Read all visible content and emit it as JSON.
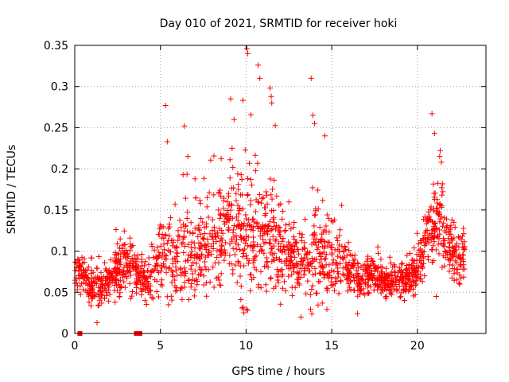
{
  "chart_data": {
    "type": "scatter",
    "title": "Day 010 of 2021, SRMTID for receiver hoki",
    "xlabel": "GPS time / hours",
    "ylabel": "SRMTID / TECUs",
    "xlim": [
      0,
      24
    ],
    "ylim": [
      0,
      0.35
    ],
    "xticks": [
      0,
      5,
      10,
      15,
      20
    ],
    "xtick_labels": [
      "0",
      "5",
      "10",
      "15",
      "20"
    ],
    "yticks": [
      0,
      0.05,
      0.1,
      0.15,
      0.2,
      0.25,
      0.3,
      0.35
    ],
    "ytick_labels": [
      "0",
      "0.05",
      "0.1",
      "0.15",
      "0.2",
      "0.25",
      "0.3",
      "0.35"
    ],
    "grid": true,
    "marker": "plus",
    "color": "#ff0000",
    "data_gaps_at_zero": [
      0.3,
      3.6,
      3.8
    ],
    "series": [
      {
        "name": "SRMTID",
        "profile": {
          "x": [
            0,
            0.5,
            1,
            1.5,
            2,
            2.5,
            3,
            3.5,
            4,
            4.5,
            5,
            5.5,
            6,
            6.5,
            7,
            7.5,
            8,
            8.5,
            9,
            9.5,
            10,
            10.5,
            11,
            11.5,
            12,
            12.5,
            13,
            13.5,
            14,
            14.5,
            15,
            15.5,
            16,
            16.5,
            17,
            17.5,
            18,
            18.5,
            19,
            19.5,
            20,
            20.5,
            21,
            21.5,
            22,
            22.5,
            22.8
          ],
          "median": [
            0.08,
            0.068,
            0.06,
            0.058,
            0.065,
            0.075,
            0.082,
            0.078,
            0.06,
            0.07,
            0.09,
            0.095,
            0.09,
            0.098,
            0.1,
            0.105,
            0.11,
            0.115,
            0.13,
            0.125,
            0.12,
            0.125,
            0.12,
            0.11,
            0.105,
            0.095,
            0.085,
            0.08,
            0.09,
            0.1,
            0.095,
            0.09,
            0.075,
            0.065,
            0.068,
            0.07,
            0.065,
            0.062,
            0.065,
            0.068,
            0.075,
            0.12,
            0.13,
            0.125,
            0.1,
            0.09,
            0.095
          ],
          "spread": [
            0.02,
            0.02,
            0.022,
            0.022,
            0.025,
            0.03,
            0.03,
            0.025,
            0.02,
            0.025,
            0.04,
            0.045,
            0.045,
            0.05,
            0.045,
            0.045,
            0.045,
            0.05,
            0.055,
            0.06,
            0.07,
            0.07,
            0.06,
            0.06,
            0.05,
            0.04,
            0.035,
            0.03,
            0.05,
            0.05,
            0.04,
            0.035,
            0.025,
            0.02,
            0.02,
            0.02,
            0.018,
            0.018,
            0.02,
            0.02,
            0.025,
            0.035,
            0.045,
            0.04,
            0.03,
            0.025,
            0.025
          ]
        },
        "notable_peaks": [
          {
            "x": 5.3,
            "y": 0.277
          },
          {
            "x": 5.4,
            "y": 0.233
          },
          {
            "x": 6.4,
            "y": 0.252
          },
          {
            "x": 6.6,
            "y": 0.215
          },
          {
            "x": 9.1,
            "y": 0.285
          },
          {
            "x": 9.3,
            "y": 0.26
          },
          {
            "x": 10.05,
            "y": 0.346
          },
          {
            "x": 10.1,
            "y": 0.34
          },
          {
            "x": 10.7,
            "y": 0.326
          },
          {
            "x": 10.8,
            "y": 0.31
          },
          {
            "x": 11.4,
            "y": 0.298
          },
          {
            "x": 11.5,
            "y": 0.28
          },
          {
            "x": 13.8,
            "y": 0.31
          },
          {
            "x": 13.9,
            "y": 0.265
          },
          {
            "x": 14.0,
            "y": 0.255
          },
          {
            "x": 14.6,
            "y": 0.24
          },
          {
            "x": 20.85,
            "y": 0.267
          },
          {
            "x": 21.0,
            "y": 0.243
          },
          {
            "x": 21.3,
            "y": 0.215
          },
          {
            "x": 21.4,
            "y": 0.208
          }
        ],
        "notable_lows": [
          {
            "x": 1.3,
            "y": 0.013
          },
          {
            "x": 4.1,
            "y": 0.04
          },
          {
            "x": 13.2,
            "y": 0.02
          },
          {
            "x": 16.5,
            "y": 0.024
          },
          {
            "x": 21.1,
            "y": 0.045
          }
        ]
      }
    ]
  }
}
